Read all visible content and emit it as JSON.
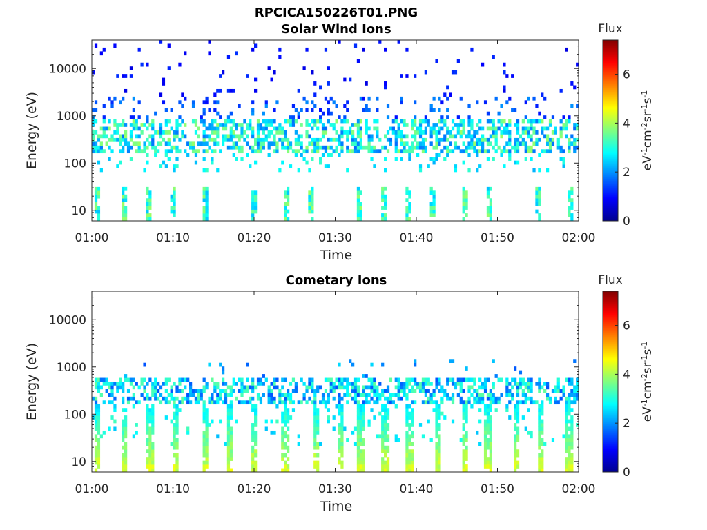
{
  "figure": {
    "title": "RPCICA150226T01.PNG"
  },
  "chart_data": [
    {
      "type": "heatmap",
      "title": "Solar Wind Ions",
      "xlabel": "Time",
      "ylabel": "Energy (eV)",
      "xticks": [
        "01:00",
        "01:10",
        "01:20",
        "01:30",
        "01:40",
        "01:50",
        "02:00"
      ],
      "xlim": [
        "01:00",
        "02:00"
      ],
      "yscale": "log",
      "ylim": [
        6,
        40000
      ],
      "yticks": [
        10,
        100,
        1000,
        10000
      ],
      "ytick_labels": [
        "10",
        "100",
        "1000",
        "10000"
      ],
      "colorbar": {
        "label": "Flux",
        "units": "eV-1cm-2sr-1s-1",
        "range": [
          0,
          7.4
        ],
        "ticks": [
          0,
          2,
          4,
          6
        ],
        "tick_labels": [
          "0",
          "2",
          "4",
          "6"
        ],
        "colormap": "jet"
      },
      "description_of_data": "sparse pixels; main band 150-800 eV (flux 2-4), scattered high-energy points 2000-40000 eV (flux ~1), low-energy bursts near 10-30 eV",
      "band": {
        "energy_low": 150,
        "energy_high": 800,
        "flux_typical": 2.8
      },
      "low_energy_bursts_minutes": [
        0.7,
        4,
        7,
        10,
        14,
        20,
        24,
        27,
        33,
        36,
        39,
        42,
        46,
        49,
        55,
        59
      ]
    },
    {
      "type": "heatmap",
      "title": "Cometary Ions",
      "xlabel": "Time",
      "ylabel": "Energy (eV)",
      "xticks": [
        "01:00",
        "01:10",
        "01:20",
        "01:30",
        "01:40",
        "01:50",
        "02:00"
      ],
      "xlim": [
        "01:00",
        "02:00"
      ],
      "yscale": "log",
      "ylim": [
        6,
        40000
      ],
      "yticks": [
        10,
        100,
        1000,
        10000
      ],
      "ytick_labels": [
        "10",
        "100",
        "1000",
        "10000"
      ],
      "colorbar": {
        "label": "Flux",
        "units": "eV-1cm-2sr-1s-1",
        "range": [
          0,
          7.4
        ],
        "ticks": [
          0,
          2,
          4,
          6
        ],
        "tick_labels": [
          "0",
          "2",
          "4",
          "6"
        ],
        "colormap": "jet"
      },
      "description_of_data": "band 150-600 eV (flux 1.5-3.5), periodic vertical spikes reaching 6-10 eV with flux 4-5.5",
      "band": {
        "energy_low": 150,
        "energy_high": 600,
        "flux_typical": 2.5
      },
      "spike_minutes": [
        0.6,
        4.1,
        7.2,
        10.3,
        13.9,
        17,
        20,
        23.9,
        27.6,
        30.6,
        33.1,
        36.2,
        39.1,
        42.6,
        46,
        48.8,
        52.4,
        55.4,
        58.8
      ]
    }
  ]
}
